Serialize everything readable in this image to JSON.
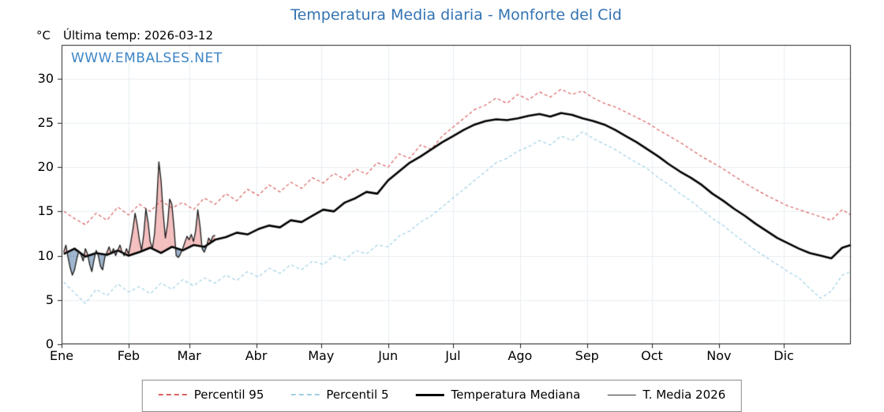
{
  "header": {
    "title": "Temperatura Media diaria - Monforte del Cid",
    "unit_label": "°C",
    "last_temp_label": "Última temp: 2026-03-12",
    "watermark": "WWW.EMBALSES.NET"
  },
  "colors": {
    "title": "#3373b3",
    "watermark": "#3d85c6",
    "p95_line": "#d95f5f",
    "p5_line": "#9fd0e4",
    "median_line": "#000000",
    "t2026_line": "#1a1a1a",
    "fill_above": "rgba(230,110,110,0.45)",
    "fill_below": "rgba(90,128,170,0.6)",
    "grid": "#e8eef2",
    "axis": "#222222"
  },
  "legend": {
    "items": [
      {
        "label": "Percentil 95"
      },
      {
        "label": "Percentil 5"
      },
      {
        "label": "Temperatura Mediana"
      },
      {
        "label": "T. Media 2026"
      }
    ]
  },
  "chart_data": {
    "type": "line",
    "title": "Temperatura Media diaria - Monforte del Cid",
    "xlabel": "",
    "ylabel": "°C",
    "legend_position": "bottom",
    "grid": true,
    "xlim": [
      0,
      365
    ],
    "ylim": [
      0,
      33.8
    ],
    "yticks": [
      0,
      5,
      10,
      15,
      20,
      25,
      30
    ],
    "months": [
      "Ene",
      "Feb",
      "Mar",
      "Abr",
      "May",
      "Jun",
      "Jul",
      "Ago",
      "Sep",
      "Oct",
      "Nov",
      "Dic"
    ],
    "month_start_days": [
      0,
      31,
      59,
      90,
      120,
      151,
      181,
      212,
      243,
      273,
      304,
      334
    ],
    "series": [
      {
        "name": "Percentil 95",
        "style": "dashed",
        "width": 1.2,
        "x_start": 1,
        "x_step": 5,
        "values": [
          15.0,
          14.2,
          13.5,
          14.8,
          14.0,
          15.5,
          14.6,
          15.8,
          15.0,
          16.2,
          15.4,
          16.0,
          15.2,
          16.5,
          15.8,
          17.0,
          16.2,
          17.5,
          16.8,
          18.0,
          17.2,
          18.3,
          17.6,
          18.8,
          18.2,
          19.3,
          18.6,
          19.8,
          19.2,
          20.5,
          20.0,
          21.5,
          21.0,
          22.5,
          22.0,
          23.5,
          24.5,
          25.5,
          26.5,
          27.0,
          27.8,
          27.2,
          28.2,
          27.6,
          28.5,
          27.9,
          28.8,
          28.2,
          28.6,
          27.8,
          27.2,
          26.8,
          26.2,
          25.6,
          25.0,
          24.2,
          23.5,
          22.8,
          22.0,
          21.2,
          20.5,
          19.8,
          19.0,
          18.2,
          17.5,
          16.8,
          16.2,
          15.6,
          15.2,
          14.8,
          14.4,
          14.0,
          15.2,
          14.6
        ]
      },
      {
        "name": "Percentil 5",
        "style": "dashed",
        "width": 1.2,
        "x_start": 1,
        "x_step": 5,
        "values": [
          7.0,
          5.8,
          4.6,
          6.2,
          5.5,
          6.8,
          5.9,
          6.5,
          5.7,
          6.9,
          6.2,
          7.3,
          6.6,
          7.5,
          6.9,
          7.8,
          7.2,
          8.2,
          7.6,
          8.6,
          8.0,
          9.0,
          8.4,
          9.4,
          9.0,
          10.0,
          9.5,
          10.6,
          10.2,
          11.2,
          11.0,
          12.2,
          12.8,
          13.8,
          14.5,
          15.5,
          16.5,
          17.5,
          18.5,
          19.5,
          20.5,
          21.0,
          21.8,
          22.3,
          23.0,
          22.5,
          23.5,
          23.0,
          24.0,
          23.2,
          22.6,
          22.0,
          21.2,
          20.5,
          19.8,
          18.8,
          18.0,
          17.0,
          16.2,
          15.2,
          14.2,
          13.4,
          12.4,
          11.5,
          10.6,
          9.8,
          9.0,
          8.2,
          7.5,
          6.3,
          5.2,
          6.0,
          7.8,
          8.2
        ]
      },
      {
        "name": "Temperatura Mediana",
        "style": "solid",
        "width": 2.6,
        "x_start": 1,
        "x_step": 5,
        "values": [
          10.2,
          10.8,
          9.9,
          10.3,
          10.1,
          10.6,
          10.0,
          10.4,
          10.9,
          10.3,
          11.0,
          10.6,
          11.2,
          11.0,
          11.8,
          12.1,
          12.6,
          12.4,
          13.0,
          13.4,
          13.2,
          14.0,
          13.8,
          14.5,
          15.2,
          15.0,
          16.0,
          16.5,
          17.2,
          17.0,
          18.5,
          19.5,
          20.5,
          21.2,
          22.0,
          22.8,
          23.5,
          24.2,
          24.8,
          25.2,
          25.4,
          25.3,
          25.5,
          25.8,
          26.0,
          25.7,
          26.1,
          25.9,
          25.5,
          25.2,
          24.8,
          24.2,
          23.5,
          22.8,
          22.0,
          21.2,
          20.3,
          19.5,
          18.8,
          18.0,
          17.0,
          16.2,
          15.3,
          14.5,
          13.6,
          12.8,
          12.0,
          11.4,
          10.8,
          10.3,
          10.0,
          9.7,
          10.9,
          11.2
        ]
      },
      {
        "name": "T. Media 2026",
        "style": "solid",
        "width": 1.3,
        "x_start": 1,
        "x_step": 1,
        "values": [
          10.4,
          11.2,
          9.8,
          8.6,
          7.8,
          8.4,
          9.6,
          10.5,
          10.1,
          9.4,
          10.8,
          10.2,
          9.0,
          8.2,
          9.5,
          10.6,
          10.0,
          8.8,
          8.4,
          9.8,
          10.4,
          11.0,
          10.2,
          10.8,
          10.0,
          10.6,
          11.2,
          10.4,
          10.0,
          10.8,
          10.2,
          11.5,
          13.0,
          14.8,
          13.5,
          11.8,
          10.6,
          12.4,
          15.3,
          13.8,
          11.6,
          10.8,
          12.5,
          16.0,
          20.6,
          18.5,
          14.8,
          12.0,
          13.5,
          16.4,
          15.8,
          13.2,
          10.0,
          9.8,
          10.2,
          10.8,
          11.5,
          12.2,
          11.8,
          12.4,
          11.6,
          12.8,
          15.2,
          13.4,
          10.8,
          10.4,
          11.0,
          12.0,
          11.6,
          12.2,
          12.3
        ]
      }
    ]
  }
}
